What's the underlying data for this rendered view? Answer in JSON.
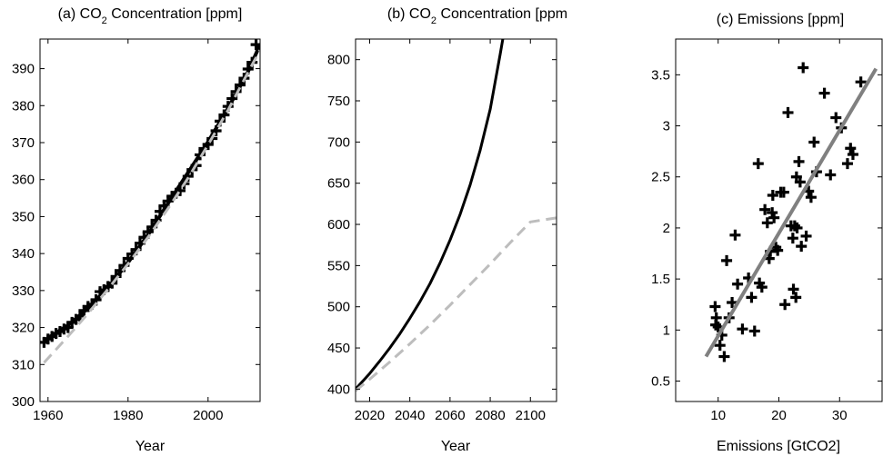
{
  "chart_data": [
    {
      "type": "line",
      "title": "(a) CO2 Concentration [ppm]",
      "title_parts": {
        "prefix": "(a) CO",
        "subscript": "2",
        "suffix": " Concentration [ppm]"
      },
      "xlabel": "Year",
      "ylabel": "",
      "xlim": [
        1958,
        2013
      ],
      "ylim": [
        300,
        398
      ],
      "xticks": [
        1960,
        1980,
        2000
      ],
      "yticks": [
        300,
        310,
        320,
        330,
        340,
        350,
        360,
        370,
        380,
        390
      ],
      "grid": false,
      "series": [
        {
          "style": "markers",
          "marker": "plus",
          "color": "#000000",
          "x": [
            1959,
            1960,
            1961,
            1962,
            1963,
            1964,
            1965,
            1966,
            1967,
            1968,
            1969,
            1970,
            1971,
            1972,
            1973,
            1974,
            1975,
            1976,
            1977,
            1978,
            1979,
            1980,
            1981,
            1982,
            1983,
            1984,
            1985,
            1986,
            1987,
            1988,
            1989,
            1990,
            1991,
            1992,
            1993,
            1994,
            1995,
            1996,
            1997,
            1998,
            1999,
            2000,
            2001,
            2002,
            2003,
            2004,
            2005,
            2006,
            2007,
            2008,
            2009,
            2010,
            2011,
            2012
          ],
          "y": [
            316,
            316.9,
            317.6,
            318.4,
            318.9,
            319.6,
            320.0,
            321.4,
            322.2,
            323.1,
            324.6,
            325.7,
            326.3,
            327.5,
            329.7,
            330.2,
            331.1,
            332.0,
            333.8,
            335.4,
            336.8,
            338.7,
            339.9,
            341.1,
            342.8,
            344.4,
            345.9,
            347.2,
            349.0,
            351.4,
            352.9,
            354.2,
            355.5,
            356.3,
            357.0,
            358.9,
            360.9,
            362.7,
            363.8,
            366.7,
            368.4,
            369.5,
            371.1,
            373.2,
            375.8,
            377.5,
            379.8,
            381.9,
            383.8,
            385.6,
            387.4,
            389.9,
            391.7,
            396.5
          ]
        },
        {
          "style": "solid",
          "color": "#000000",
          "width": 4,
          "x": [
            1959,
            1965,
            1970,
            1975,
            1980,
            1985,
            1990,
            1995,
            2000,
            2005,
            2010,
            2013
          ],
          "y": [
            316.5,
            320.6,
            325.2,
            330.8,
            337.6,
            345.1,
            353.6,
            361.9,
            370.2,
            379.3,
            389.2,
            396.5
          ]
        },
        {
          "style": "dashed",
          "color": "#bdbdbd",
          "width": 3,
          "x": [
            1959,
            1965,
            1970,
            1975,
            1980,
            1985,
            1990,
            1995,
            2000,
            2005,
            2010,
            2013
          ],
          "y": [
            310.5,
            317.6,
            323.8,
            330.4,
            337.2,
            344.4,
            352.2,
            360.4,
            369.4,
            378.8,
            389.0,
            395.0
          ]
        }
      ]
    },
    {
      "type": "line",
      "title": "(b) CO2 Concentration [ppm",
      "title_parts": {
        "prefix": "(b) CO",
        "subscript": "2",
        "suffix": " Concentration [ppm"
      },
      "xlabel": "Year",
      "ylabel": "",
      "xlim": [
        2013,
        2113
      ],
      "ylim": [
        385,
        825
      ],
      "xticks": [
        2020,
        2040,
        2060,
        2080,
        2100
      ],
      "yticks": [
        400,
        450,
        500,
        550,
        600,
        650,
        700,
        750,
        800
      ],
      "grid": false,
      "series": [
        {
          "style": "solid",
          "color": "#000000",
          "width": 3,
          "x": [
            2013,
            2020,
            2025,
            2030,
            2035,
            2040,
            2045,
            2050,
            2055,
            2060,
            2065,
            2070,
            2075,
            2080,
            2085,
            2087
          ],
          "y": [
            400,
            419,
            434,
            450,
            467,
            486,
            506,
            528,
            553,
            581,
            612,
            648,
            690,
            740,
            807,
            835
          ]
        },
        {
          "style": "dashed",
          "color": "#bdbdbd",
          "width": 3,
          "x": [
            2013,
            2020,
            2030,
            2040,
            2050,
            2060,
            2070,
            2080,
            2090,
            2100,
            2113
          ],
          "y": [
            398,
            412,
            433,
            455,
            478,
            502,
            527,
            552,
            578,
            603,
            608
          ]
        }
      ]
    },
    {
      "type": "scatter",
      "title": "(c) Emissions [ppm]",
      "xlabel": "Emissions [GtCO2]",
      "ylabel": "",
      "xlim": [
        3,
        37
      ],
      "ylim": [
        0.3,
        3.85
      ],
      "xticks": [
        10,
        20,
        30
      ],
      "yticks": [
        0.5,
        1,
        1.5,
        2,
        2.5,
        3,
        3.5
      ],
      "yticklabels": [
        "0.5",
        "1",
        "1.5",
        "2",
        "2.5",
        "3",
        "3.5"
      ],
      "grid": false,
      "series": [
        {
          "style": "markers",
          "marker": "plus",
          "color": "#000000",
          "x": [
            9.5,
            9.6,
            9.7,
            10.0,
            10.3,
            10.6,
            11.0,
            11.4,
            11.8,
            12.3,
            12.8,
            13.2,
            14.0,
            15.0,
            15.5,
            16.0,
            16.6,
            16.8,
            17.2,
            17.7,
            18.1,
            18.4,
            18.6,
            18.9,
            19.0,
            19.2,
            19.5,
            19.8,
            20.3,
            20.8,
            21.0,
            21.5,
            22.0,
            22.3,
            22.4,
            22.6,
            22.8,
            22.9,
            23.0,
            23.3,
            23.5,
            23.7,
            24.0,
            24.5,
            24.9,
            25.3,
            25.8,
            26.2,
            27.5,
            28.5,
            29.4,
            30.3,
            31.3,
            31.8,
            32.2,
            33.5
          ],
          "y": [
            1.23,
            1.05,
            1.12,
            1.03,
            0.85,
            0.95,
            0.74,
            1.68,
            1.12,
            1.27,
            1.93,
            1.45,
            1.01,
            1.51,
            1.32,
            0.99,
            2.63,
            1.46,
            1.42,
            2.18,
            2.05,
            1.7,
            1.77,
            2.15,
            2.32,
            2.1,
            1.81,
            1.78,
            2.35,
            2.35,
            1.25,
            3.13,
            2.02,
            1.9,
            1.4,
            2.02,
            1.32,
            2.5,
            2.0,
            2.65,
            2.45,
            1.82,
            3.57,
            1.92,
            2.36,
            2.3,
            2.84,
            2.55,
            3.32,
            2.52,
            3.08,
            2.98,
            2.63,
            2.78,
            2.72,
            3.43
          ]
        },
        {
          "style": "solid",
          "color": "#808080",
          "width": 4,
          "x": [
            8.0,
            36.0
          ],
          "y": [
            0.74,
            3.56
          ]
        }
      ]
    }
  ]
}
